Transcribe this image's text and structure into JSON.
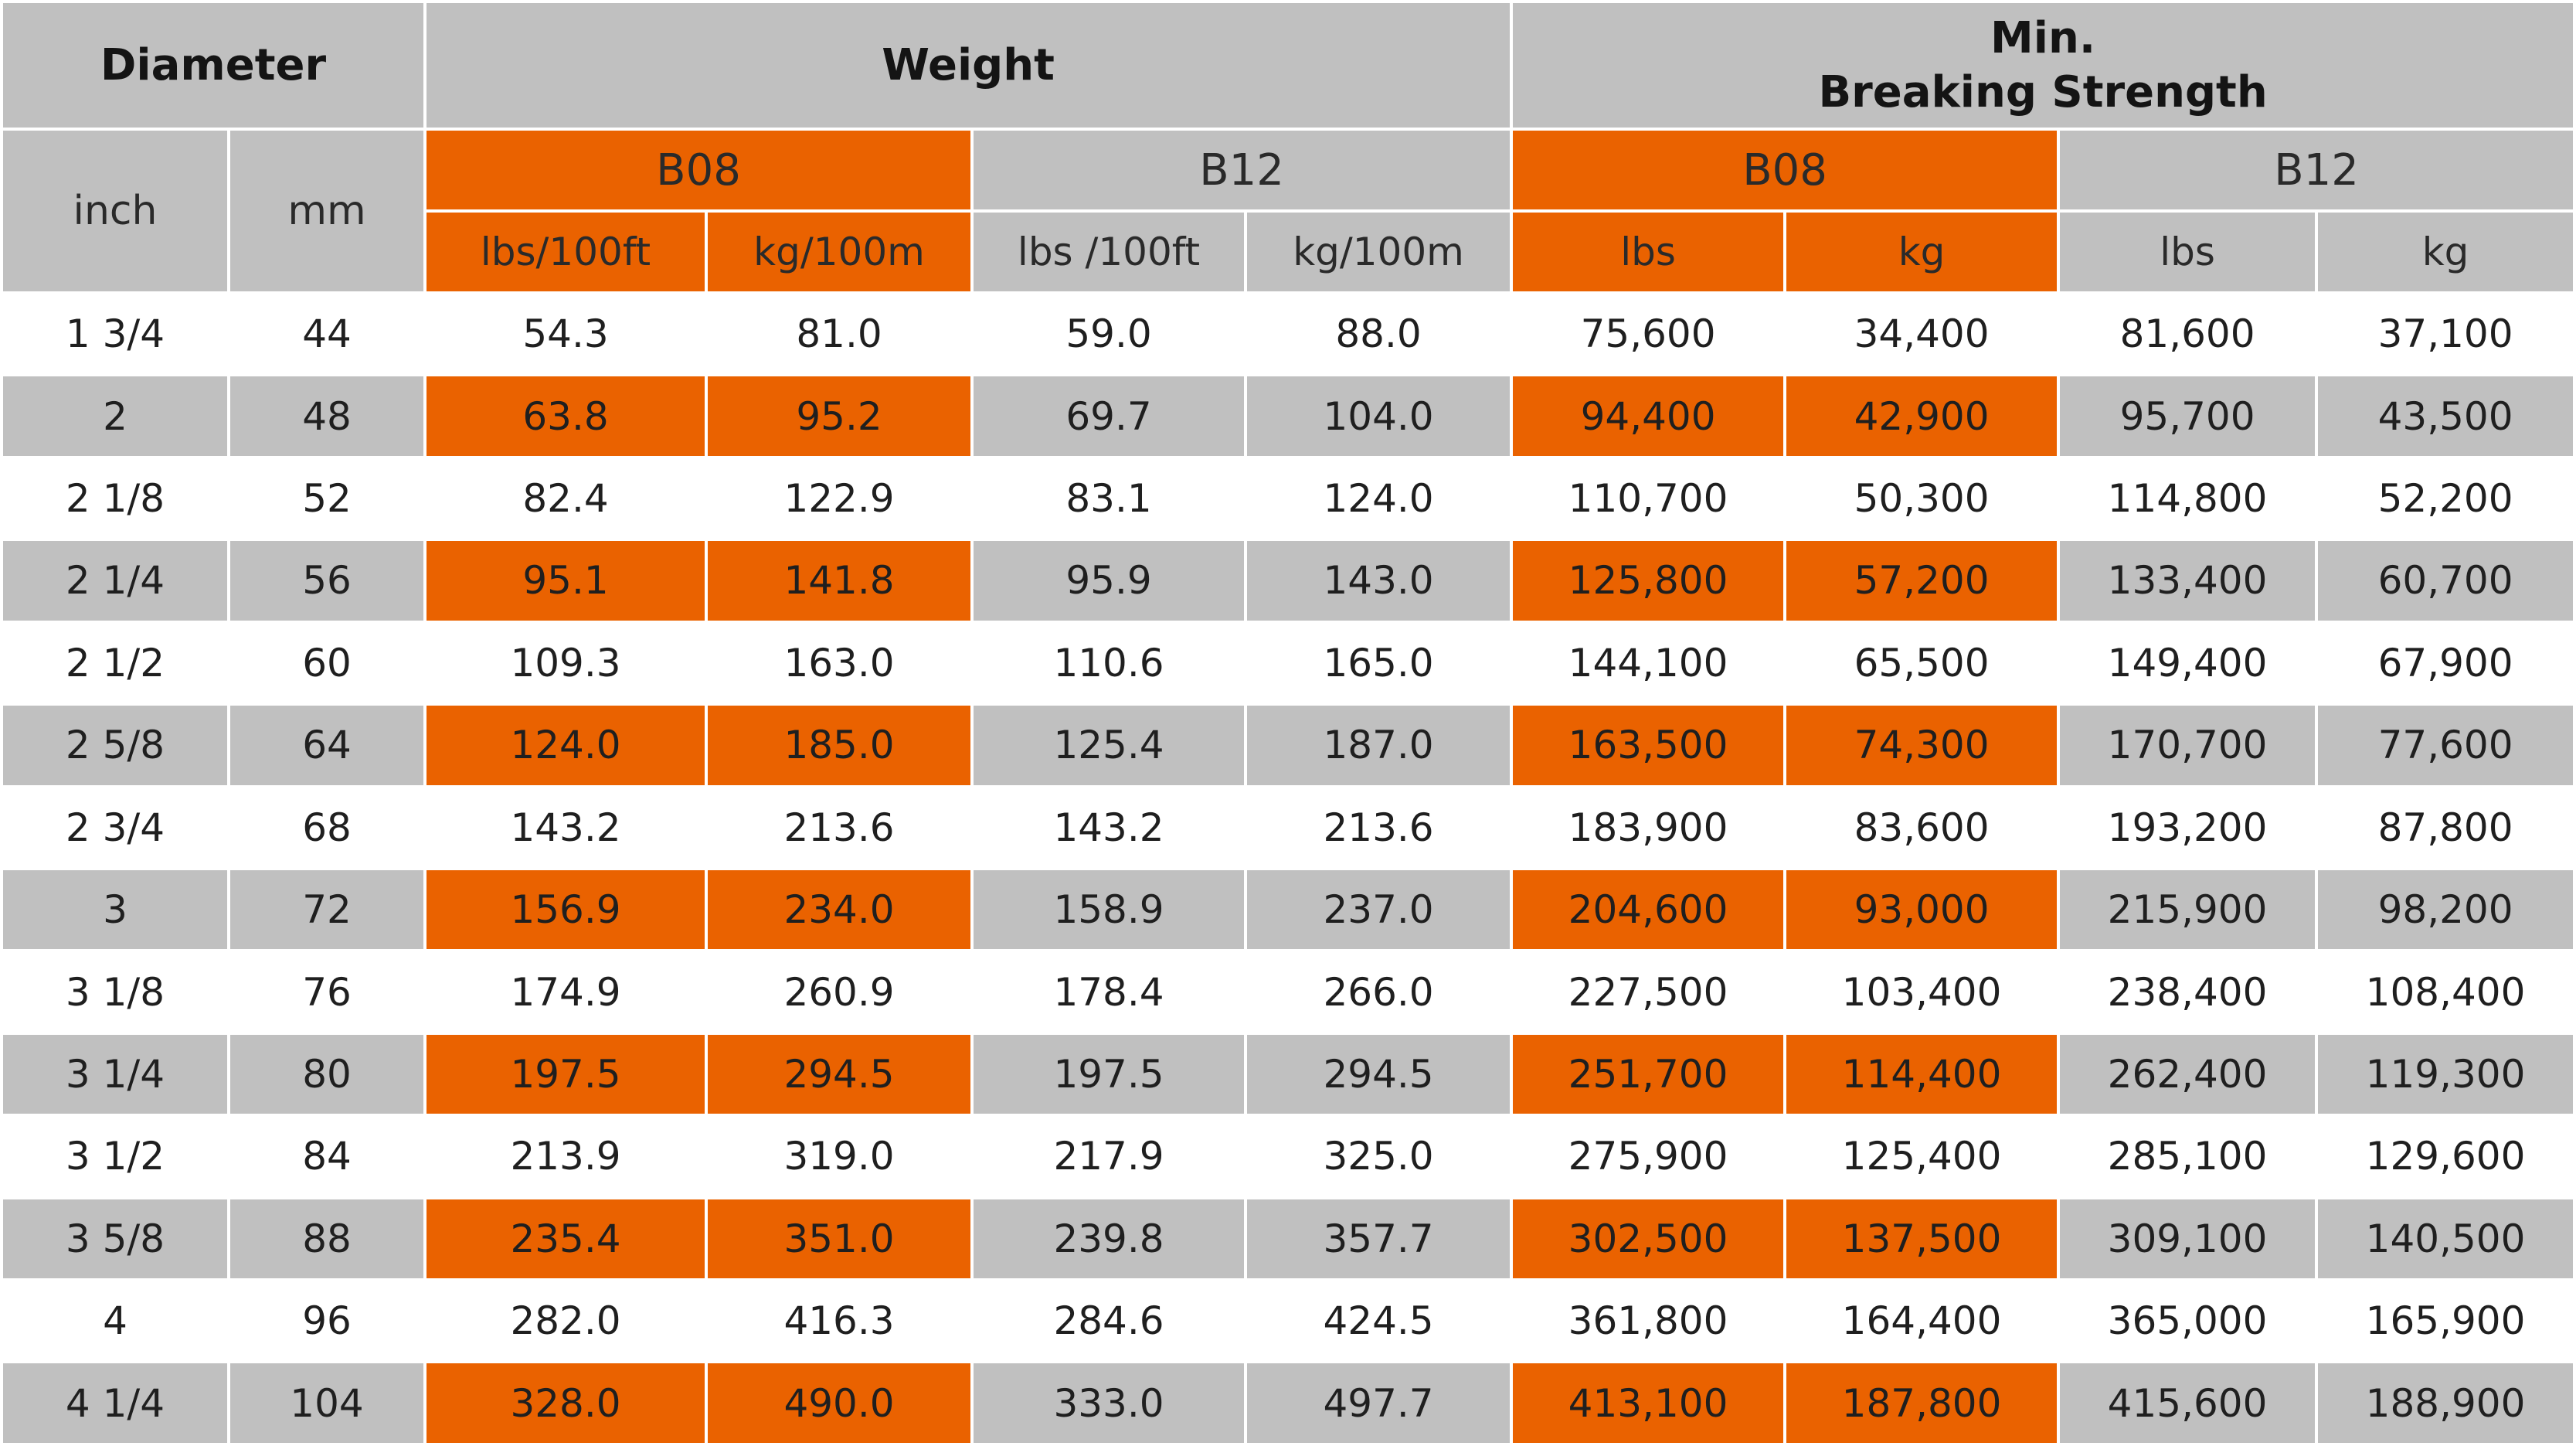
{
  "header": {
    "diameter": "Diameter",
    "weight": "Weight",
    "mbs_line1": "Min.",
    "mbs_line2": "Breaking Strength",
    "inch": "inch",
    "mm": "mm",
    "weight_b08": "B08",
    "weight_b12": "B12",
    "mbs_b08": "B08",
    "mbs_b12": "B12",
    "u_w_b08_lbs": "lbs/100ft",
    "u_w_b08_kg": "kg/100m",
    "u_w_b12_lbs": "lbs /100ft",
    "u_w_b12_kg": "kg/100m",
    "u_m_b08_lbs": "lbs",
    "u_m_b08_kg": "kg",
    "u_m_b12_lbs": "lbs",
    "u_m_b12_kg": "kg"
  },
  "colors": {
    "highlight": "#ea6200",
    "header_gray": "#c0c0c0",
    "row_white": "#ffffff"
  },
  "rows": [
    [
      "1 3/4",
      "44",
      "54.3",
      "81.0",
      "59.0",
      "88.0",
      "75,600",
      "34,400",
      "81,600",
      "37,100"
    ],
    [
      "2",
      "48",
      "63.8",
      "95.2",
      "69.7",
      "104.0",
      "94,400",
      "42,900",
      "95,700",
      "43,500"
    ],
    [
      "2 1/8",
      "52",
      "82.4",
      "122.9",
      "83.1",
      "124.0",
      "110,700",
      "50,300",
      "114,800",
      "52,200"
    ],
    [
      "2 1/4",
      "56",
      "95.1",
      "141.8",
      "95.9",
      "143.0",
      "125,800",
      "57,200",
      "133,400",
      "60,700"
    ],
    [
      "2 1/2",
      "60",
      "109.3",
      "163.0",
      "110.6",
      "165.0",
      "144,100",
      "65,500",
      "149,400",
      "67,900"
    ],
    [
      "2 5/8",
      "64",
      "124.0",
      "185.0",
      "125.4",
      "187.0",
      "163,500",
      "74,300",
      "170,700",
      "77,600"
    ],
    [
      "2 3/4",
      "68",
      "143.2",
      "213.6",
      "143.2",
      "213.6",
      "183,900",
      "83,600",
      "193,200",
      "87,800"
    ],
    [
      "3",
      "72",
      "156.9",
      "234.0",
      "158.9",
      "237.0",
      "204,600",
      "93,000",
      "215,900",
      "98,200"
    ],
    [
      "3 1/8",
      "76",
      "174.9",
      "260.9",
      "178.4",
      "266.0",
      "227,500",
      "103,400",
      "238,400",
      "108,400"
    ],
    [
      "3 1/4",
      "80",
      "197.5",
      "294.5",
      "197.5",
      "294.5",
      "251,700",
      "114,400",
      "262,400",
      "119,300"
    ],
    [
      "3 1/2",
      "84",
      "213.9",
      "319.0",
      "217.9",
      "325.0",
      "275,900",
      "125,400",
      "285,100",
      "129,600"
    ],
    [
      "3 5/8",
      "88",
      "235.4",
      "351.0",
      "239.8",
      "357.7",
      "302,500",
      "137,500",
      "309,100",
      "140,500"
    ],
    [
      "4",
      "96",
      "282.0",
      "416.3",
      "284.6",
      "424.5",
      "361,800",
      "164,400",
      "365,000",
      "165,900"
    ],
    [
      "4 1/4",
      "104",
      "328.0",
      "490.0",
      "333.0",
      "497.7",
      "413,100",
      "187,800",
      "415,600",
      "188,900"
    ]
  ]
}
